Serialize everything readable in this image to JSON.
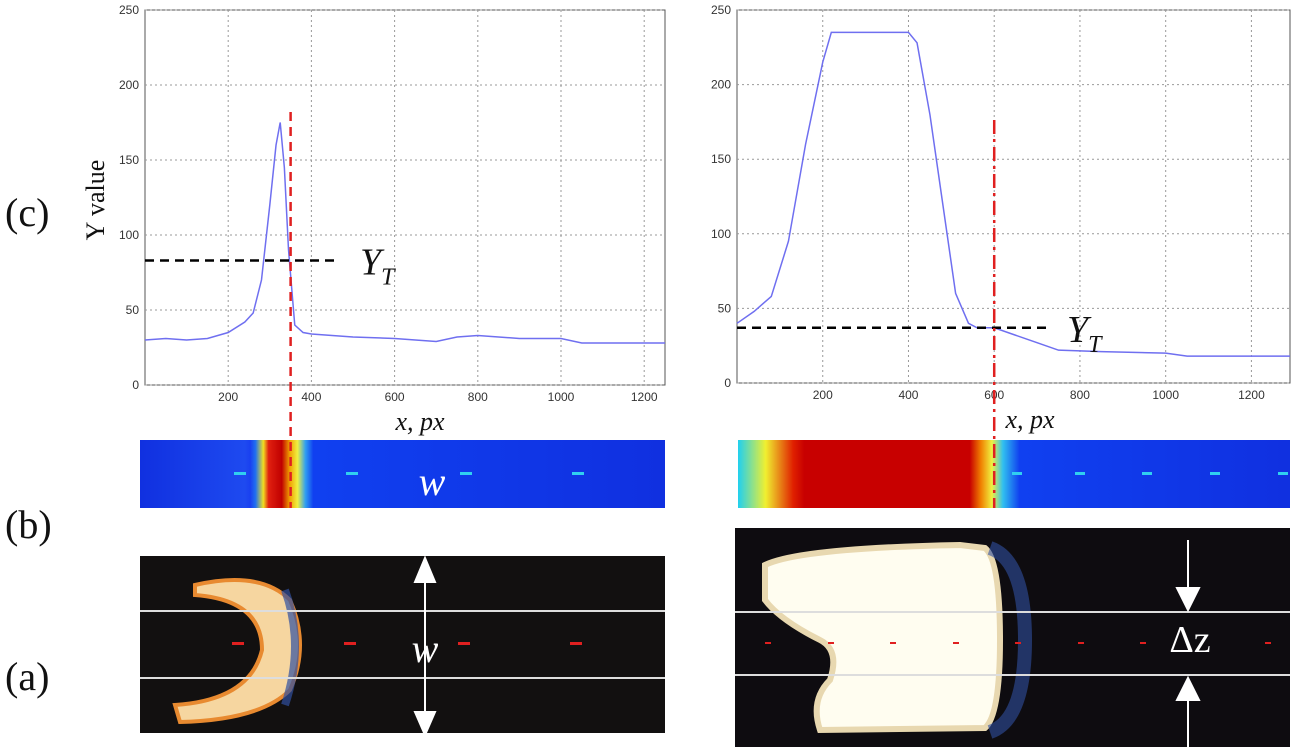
{
  "chart_data": [
    {
      "type": "line",
      "ylabel": "Y value",
      "xlabel": "x, px",
      "x": [
        0,
        50,
        100,
        150,
        200,
        240,
        260,
        280,
        300,
        315,
        325,
        335,
        345,
        360,
        380,
        400,
        500,
        600,
        700,
        750,
        800,
        900,
        1000,
        1050,
        1100,
        1250
      ],
      "values": [
        30,
        31,
        30,
        31,
        35,
        42,
        48,
        70,
        120,
        160,
        175,
        145,
        90,
        40,
        35,
        34,
        32,
        31,
        29,
        32,
        33,
        31,
        31,
        28,
        28,
        28
      ],
      "color": "#6f6ff0",
      "xlim": [
        0,
        1250
      ],
      "ylim": [
        0,
        250
      ],
      "xticks": [
        200,
        400,
        600,
        800,
        1000,
        1200
      ],
      "yticks": [
        0,
        50,
        100,
        150,
        200,
        250
      ],
      "grid": true,
      "threshold": 83,
      "marker_x": 350,
      "annotation": {
        "main": "Y",
        "sub": "T"
      }
    },
    {
      "type": "line",
      "xlabel": "x, px",
      "x": [
        0,
        40,
        80,
        120,
        160,
        200,
        220,
        300,
        400,
        420,
        450,
        480,
        510,
        540,
        560,
        600,
        650,
        700,
        750,
        850,
        1000,
        1050,
        1150,
        1290
      ],
      "values": [
        40,
        48,
        58,
        95,
        160,
        215,
        235,
        235,
        235,
        228,
        180,
        120,
        60,
        40,
        37,
        37,
        32,
        27,
        22,
        21,
        20,
        18,
        18,
        18
      ],
      "color": "#6f6ff0",
      "xlim": [
        0,
        1290
      ],
      "ylim": [
        0,
        250
      ],
      "xticks": [
        200,
        400,
        600,
        800,
        1000,
        1200
      ],
      "yticks": [
        0,
        50,
        100,
        150,
        200,
        250
      ],
      "grid": true,
      "threshold": 37,
      "marker_x": 600,
      "annotation": {
        "main": "Y",
        "sub": "T"
      }
    }
  ],
  "figure": {
    "panel_labels": [
      "(c)",
      "(b)",
      "(a)"
    ],
    "width_label_heatmap": "w",
    "width_label_photo": "w",
    "dz_label": "Δz"
  }
}
